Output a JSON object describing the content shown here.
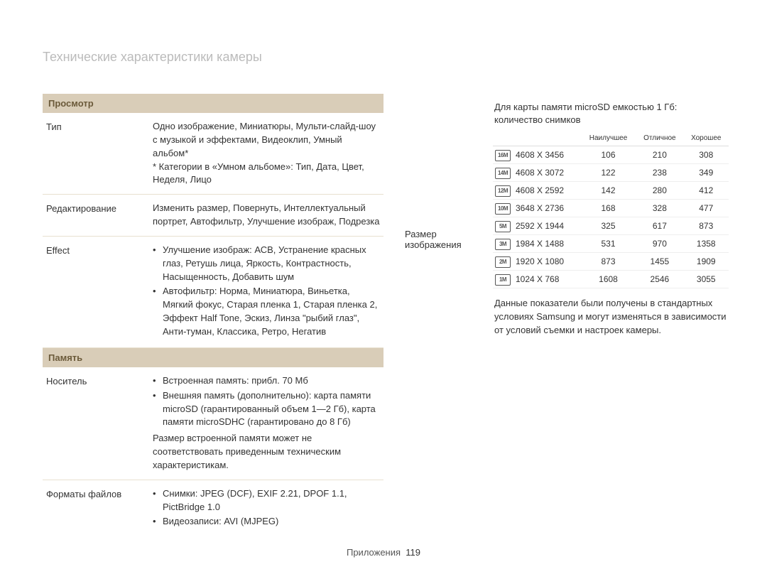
{
  "page": {
    "title": "Технические характеристики камеры",
    "footer_label": "Приложения",
    "footer_page": "119"
  },
  "sections": {
    "view": {
      "header": "Просмотр"
    },
    "memory": {
      "header": "Память"
    }
  },
  "view_rows": {
    "type": {
      "label": "Тип",
      "value": "Одно изображение, Миниатюры, Мульти-слайд-шоу с музыкой и эффектами, Видеоклип, Умный альбом*\n* Категории в «Умном альбоме»: Тип, Дата, Цвет, Неделя, Лицо"
    },
    "edit": {
      "label": "Редактирование",
      "value": "Изменить размер, Повернуть, Интеллектуальный портрет, Автофильтр, Улучшение изображ, Подрезка"
    },
    "effect": {
      "label": "Effect",
      "bullet1": "Улучшение изображ: АСВ, Устранение красных глаз, Ретушь лица, Яркость, Контрастность, Насыщенность, Добавить шум",
      "bullet2": "Автофильтр: Норма, Миниатюра, Виньетка, Мягкий фокус, Старая пленка 1, Старая пленка 2, Эффект Half Tone, Эскиз, Линза \"рыбий глаз\", Анти-туман, Классика, Ретро, Негатив"
    }
  },
  "memory_rows": {
    "media": {
      "label": "Носитель",
      "bullet1": "Встроенная память: прибл. 70 Мб",
      "bullet2": "Внешняя память (дополнительно): карта памяти microSD (гарантированный объем 1—2 Гб), карта памяти microSDHC (гарантировано до 8 Гб)",
      "note": "Размер встроенной памяти может не соответствовать приведенным техническим характеристикам."
    },
    "formats": {
      "label": "Форматы файлов",
      "bullet1": "Снимки: JPEG (DCF), EXIF 2.21, DPOF 1.1, PictBridge 1.0",
      "bullet2": "Видеозаписи: AVI (MJPEG)"
    }
  },
  "right": {
    "label": "Размер изображения",
    "intro": "Для карты памяти microSD емкостью 1 Гб: количество снимков",
    "note": "Данные показатели были получены в стандартных условиях Samsung и могут изменяться в зависимости от условий съемки и настроек камеры.",
    "table": {
      "headers": {
        "c1": "Наилучшее",
        "c2": "Отличное",
        "c3": "Хорошее"
      },
      "rows": [
        {
          "icon": "16M",
          "res": "4608 X 3456",
          "v1": "106",
          "v2": "210",
          "v3": "308"
        },
        {
          "icon": "14M",
          "res": "4608 X 3072",
          "v1": "122",
          "v2": "238",
          "v3": "349"
        },
        {
          "icon": "12M",
          "res": "4608 X 2592",
          "v1": "142",
          "v2": "280",
          "v3": "412"
        },
        {
          "icon": "10M",
          "res": "3648 X 2736",
          "v1": "168",
          "v2": "328",
          "v3": "477"
        },
        {
          "icon": "5M",
          "res": "2592 X 1944",
          "v1": "325",
          "v2": "617",
          "v3": "873"
        },
        {
          "icon": "3M",
          "res": "1984 X 1488",
          "v1": "531",
          "v2": "970",
          "v3": "1358"
        },
        {
          "icon": "2M",
          "res": "1920 X 1080",
          "v1": "873",
          "v2": "1455",
          "v3": "1909"
        },
        {
          "icon": "1M",
          "res": "1024 X 768",
          "v1": "1608",
          "v2": "2546",
          "v3": "3055"
        }
      ]
    }
  },
  "colors": {
    "header_bg": "#d9cdb8",
    "header_text": "#6b5a3a",
    "border": "#e8e0d0",
    "title": "#bbbbbb",
    "text": "#333333"
  }
}
